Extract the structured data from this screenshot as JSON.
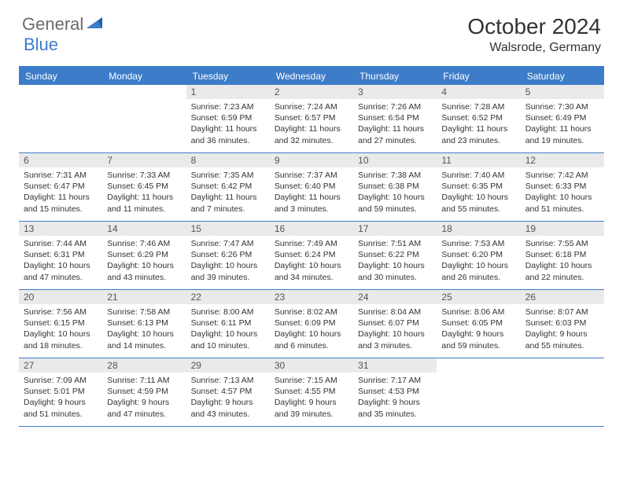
{
  "colors": {
    "brand_blue": "#3d7cc9",
    "header_bg": "#3d7cc9",
    "header_text": "#ffffff",
    "daynum_bg": "#eaeaea",
    "border": "#3d7cc9",
    "text": "#333333",
    "logo_gray": "#6b6b6b"
  },
  "typography": {
    "title_fontsize": 28,
    "location_fontsize": 16,
    "dayhead_fontsize": 12,
    "body_fontsize": 10.5
  },
  "logo": {
    "left": "General",
    "right": "Blue"
  },
  "title": "October 2024",
  "location": "Walsrode, Germany",
  "dayNames": [
    "Sunday",
    "Monday",
    "Tuesday",
    "Wednesday",
    "Thursday",
    "Friday",
    "Saturday"
  ],
  "labels": {
    "sunrise": "Sunrise: ",
    "sunset": "Sunset: ",
    "daylight": "Daylight: "
  },
  "weeks": [
    [
      null,
      null,
      {
        "n": "1",
        "sr": "7:23 AM",
        "ss": "6:59 PM",
        "dl": "11 hours and 36 minutes."
      },
      {
        "n": "2",
        "sr": "7:24 AM",
        "ss": "6:57 PM",
        "dl": "11 hours and 32 minutes."
      },
      {
        "n": "3",
        "sr": "7:26 AM",
        "ss": "6:54 PM",
        "dl": "11 hours and 27 minutes."
      },
      {
        "n": "4",
        "sr": "7:28 AM",
        "ss": "6:52 PM",
        "dl": "11 hours and 23 minutes."
      },
      {
        "n": "5",
        "sr": "7:30 AM",
        "ss": "6:49 PM",
        "dl": "11 hours and 19 minutes."
      }
    ],
    [
      {
        "n": "6",
        "sr": "7:31 AM",
        "ss": "6:47 PM",
        "dl": "11 hours and 15 minutes."
      },
      {
        "n": "7",
        "sr": "7:33 AM",
        "ss": "6:45 PM",
        "dl": "11 hours and 11 minutes."
      },
      {
        "n": "8",
        "sr": "7:35 AM",
        "ss": "6:42 PM",
        "dl": "11 hours and 7 minutes."
      },
      {
        "n": "9",
        "sr": "7:37 AM",
        "ss": "6:40 PM",
        "dl": "11 hours and 3 minutes."
      },
      {
        "n": "10",
        "sr": "7:38 AM",
        "ss": "6:38 PM",
        "dl": "10 hours and 59 minutes."
      },
      {
        "n": "11",
        "sr": "7:40 AM",
        "ss": "6:35 PM",
        "dl": "10 hours and 55 minutes."
      },
      {
        "n": "12",
        "sr": "7:42 AM",
        "ss": "6:33 PM",
        "dl": "10 hours and 51 minutes."
      }
    ],
    [
      {
        "n": "13",
        "sr": "7:44 AM",
        "ss": "6:31 PM",
        "dl": "10 hours and 47 minutes."
      },
      {
        "n": "14",
        "sr": "7:46 AM",
        "ss": "6:29 PM",
        "dl": "10 hours and 43 minutes."
      },
      {
        "n": "15",
        "sr": "7:47 AM",
        "ss": "6:26 PM",
        "dl": "10 hours and 39 minutes."
      },
      {
        "n": "16",
        "sr": "7:49 AM",
        "ss": "6:24 PM",
        "dl": "10 hours and 34 minutes."
      },
      {
        "n": "17",
        "sr": "7:51 AM",
        "ss": "6:22 PM",
        "dl": "10 hours and 30 minutes."
      },
      {
        "n": "18",
        "sr": "7:53 AM",
        "ss": "6:20 PM",
        "dl": "10 hours and 26 minutes."
      },
      {
        "n": "19",
        "sr": "7:55 AM",
        "ss": "6:18 PM",
        "dl": "10 hours and 22 minutes."
      }
    ],
    [
      {
        "n": "20",
        "sr": "7:56 AM",
        "ss": "6:15 PM",
        "dl": "10 hours and 18 minutes."
      },
      {
        "n": "21",
        "sr": "7:58 AM",
        "ss": "6:13 PM",
        "dl": "10 hours and 14 minutes."
      },
      {
        "n": "22",
        "sr": "8:00 AM",
        "ss": "6:11 PM",
        "dl": "10 hours and 10 minutes."
      },
      {
        "n": "23",
        "sr": "8:02 AM",
        "ss": "6:09 PM",
        "dl": "10 hours and 6 minutes."
      },
      {
        "n": "24",
        "sr": "8:04 AM",
        "ss": "6:07 PM",
        "dl": "10 hours and 3 minutes."
      },
      {
        "n": "25",
        "sr": "8:06 AM",
        "ss": "6:05 PM",
        "dl": "9 hours and 59 minutes."
      },
      {
        "n": "26",
        "sr": "8:07 AM",
        "ss": "6:03 PM",
        "dl": "9 hours and 55 minutes."
      }
    ],
    [
      {
        "n": "27",
        "sr": "7:09 AM",
        "ss": "5:01 PM",
        "dl": "9 hours and 51 minutes."
      },
      {
        "n": "28",
        "sr": "7:11 AM",
        "ss": "4:59 PM",
        "dl": "9 hours and 47 minutes."
      },
      {
        "n": "29",
        "sr": "7:13 AM",
        "ss": "4:57 PM",
        "dl": "9 hours and 43 minutes."
      },
      {
        "n": "30",
        "sr": "7:15 AM",
        "ss": "4:55 PM",
        "dl": "9 hours and 39 minutes."
      },
      {
        "n": "31",
        "sr": "7:17 AM",
        "ss": "4:53 PM",
        "dl": "9 hours and 35 minutes."
      },
      null,
      null
    ]
  ]
}
